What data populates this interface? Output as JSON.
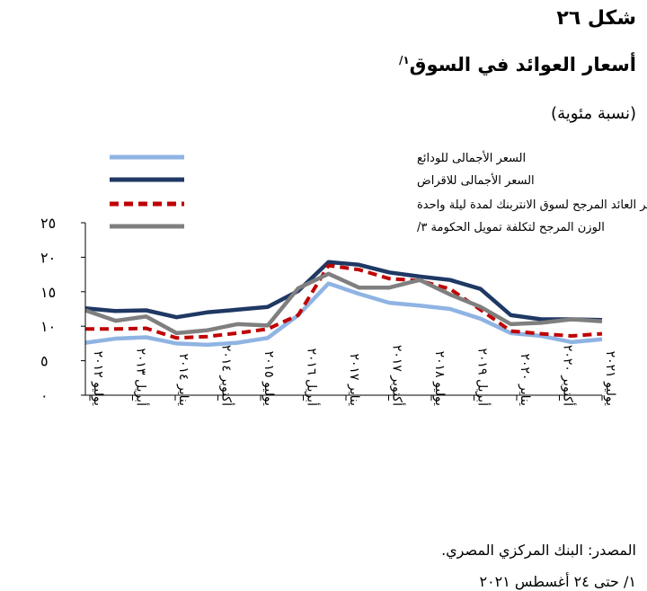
{
  "header": {
    "figure_number": "شكل ٢٦",
    "title": "أسعار العوائد في السوق",
    "title_note": "١/",
    "unit": "(نسبة مئوية)"
  },
  "footer": {
    "source": "المصدر: البنك المركزي المصري.",
    "footnote": "١/ حتى ٢٤ أغسطس ٢٠٢١"
  },
  "chart_data": {
    "type": "line",
    "ylim": [
      0,
      25
    ],
    "yticks": [
      {
        "value": 0,
        "label": "٠"
      },
      {
        "value": 5,
        "label": "٥"
      },
      {
        "value": 10,
        "label": "١٠"
      },
      {
        "value": 15,
        "label": "١٥"
      },
      {
        "value": 20,
        "label": "٢٠"
      },
      {
        "value": 25,
        "label": "٢٥"
      }
    ],
    "x_labels": [
      "يوليو ٢٠١٢",
      "أبريل ٢٠١٣",
      "يناير ٢٠١٤",
      "أكتوبر ٢٠١٤",
      "يوليو ٢٠١٥",
      "أبريل ٢٠١٦",
      "يناير ٢٠١٧",
      "أكتوبر ٢٠١٧",
      "يوليو ٢٠١٨",
      "أبريل ٢٠١٩",
      "يناير ٢٠٢٠",
      "أكتوبر ٢٠٢٠",
      "يوليو ٢٠٢١"
    ],
    "grid": false,
    "legend_position": "top-left",
    "series": [
      {
        "name": "السعر الأجمالى للودائع",
        "color": "#8fb4e3",
        "dash": "solid",
        "values": [
          7.6,
          8.2,
          8.4,
          7.5,
          7.3,
          7.6,
          8.3,
          11.6,
          16.2,
          14.7,
          13.4,
          13.0,
          12.5,
          11.1,
          9.0,
          8.6,
          7.7,
          8.1
        ]
      },
      {
        "name": "السعر الأجمالى للاقراض",
        "color": "#1f3864",
        "dash": "solid",
        "values": [
          12.6,
          12.2,
          12.3,
          11.3,
          12.0,
          12.4,
          12.8,
          15.1,
          19.3,
          18.9,
          17.8,
          17.2,
          16.7,
          15.4,
          11.6,
          11.0,
          11.0,
          10.9
        ]
      },
      {
        "name": "سعر العائد المرجح لسوق الانتربنك لمدة ليلة واحدة",
        "color": "#c00000",
        "dash": "dashed",
        "values": [
          9.6,
          9.6,
          9.7,
          8.3,
          8.5,
          9.0,
          9.6,
          11.6,
          18.8,
          18.2,
          16.9,
          16.6,
          15.4,
          12.4,
          9.3,
          8.9,
          8.6,
          8.9
        ]
      },
      {
        "name": "الوزن المرجح لتكلفة تمويل الحكومة ٣/",
        "color": "#7f7f7f",
        "dash": "solid",
        "values": [
          12.3,
          10.8,
          11.4,
          9.0,
          9.4,
          10.3,
          10.1,
          15.5,
          17.6,
          15.6,
          15.6,
          16.7,
          14.6,
          12.8,
          10.3,
          10.5,
          11.0,
          10.7
        ]
      }
    ]
  }
}
